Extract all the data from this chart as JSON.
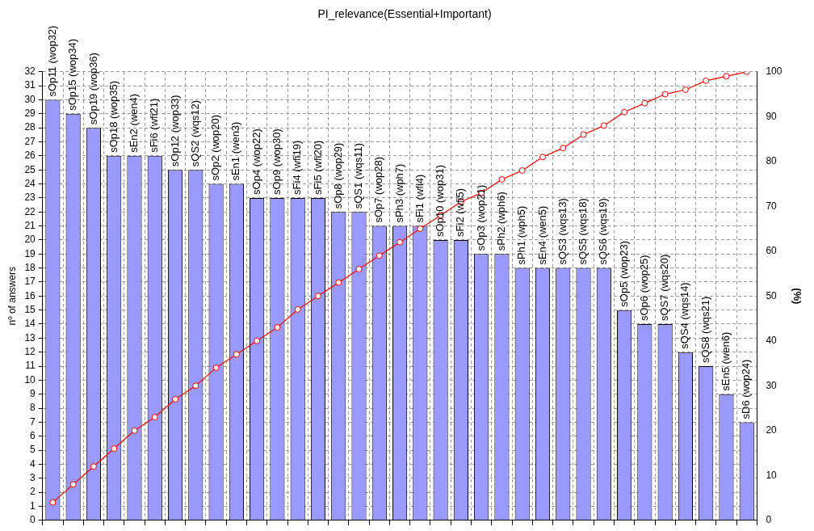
{
  "chart_data": {
    "type": "bar",
    "title": "PI_relevance(Essential+Important)",
    "ylabel": "nº of answers",
    "y2label": "(%)",
    "categories": [
      "sOp11 (wop32)",
      "sOp15 (wop34)",
      "sOp19 (wop36)",
      "sOp18 (wop35)",
      "sEn2 (wen4)",
      "sFi6 (wfi21)",
      "sOp12 (wop33)",
      "sQS2 (wqs12)",
      "sOp2 (wop20)",
      "sEn1 (wen3)",
      "sOp4 (wop22)",
      "sOp9 (wop30)",
      "sFi4 (wfi19)",
      "sFi5 (wfi20)",
      "sOp8 (wop29)",
      "sQS1 (wqs11)",
      "sOp7 (wop28)",
      "sPh3 (wph7)",
      "sFi1 (wfi4)",
      "sOp10 (wop31)",
      "sFi2 (wfi5)",
      "sOp3 (wop21)",
      "sPh2 (wph6)",
      "sPh1 (wph5)",
      "sEn4 (wen5)",
      "sQS3 (wqs13)",
      "sQS5 (wqs18)",
      "sQS6 (wqs19)",
      "sOp5 (wop23)",
      "sOp6 (wop25)",
      "sQS7 (wqs20)",
      "sQS4 (wqs14)",
      "sQS8 (wqs21)",
      "sEn5 (wen6)",
      "sD6 (wop24)"
    ],
    "series": [
      {
        "color": "#9999ff",
        "values": [
          30,
          29,
          28,
          26,
          26,
          26,
          25,
          25,
          24,
          24,
          23,
          23,
          23,
          23,
          22,
          22,
          21,
          21,
          21,
          20,
          20,
          19,
          19,
          18,
          18,
          18,
          18,
          18,
          15,
          14,
          14,
          12,
          11,
          9,
          7
        ]
      },
      {
        "type": "line",
        "axis": "y2",
        "color": "#ff0000",
        "marker": "circle",
        "values": [
          4,
          8,
          12,
          16,
          20,
          23,
          27,
          30,
          34,
          37,
          40,
          43,
          47,
          50,
          53,
          56,
          59,
          62,
          65,
          68,
          71,
          73,
          76,
          78,
          81,
          83,
          86,
          88,
          91,
          93,
          95,
          96,
          98,
          99,
          100
        ]
      }
    ],
    "ylim": [
      0,
      32
    ],
    "yticks": [
      0,
      1,
      2,
      3,
      4,
      5,
      6,
      7,
      8,
      9,
      10,
      11,
      12,
      13,
      14,
      15,
      16,
      17,
      18,
      19,
      20,
      21,
      22,
      23,
      24,
      25,
      26,
      27,
      28,
      29,
      30,
      31,
      32
    ],
    "y2lim": [
      0,
      100
    ],
    "y2ticks": [
      0,
      10,
      20,
      30,
      40,
      50,
      60,
      70,
      80,
      90,
      100
    ],
    "grid": true,
    "legend": false
  }
}
